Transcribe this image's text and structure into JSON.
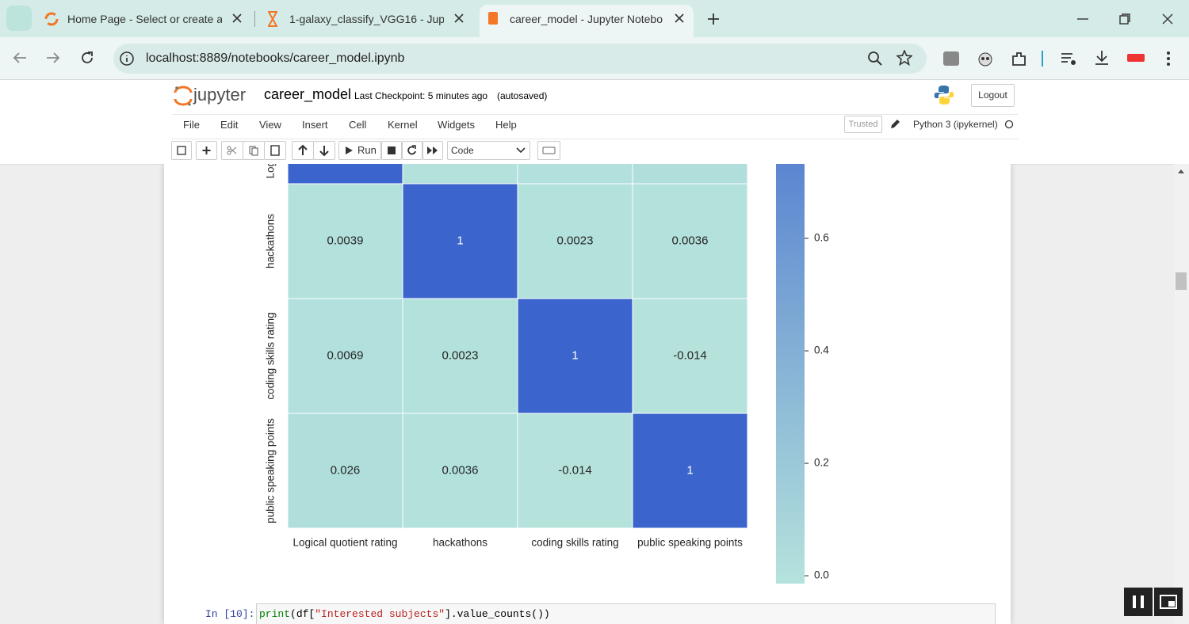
{
  "browser": {
    "tabs": [
      "Home Page - Select or create a",
      "1-galaxy_classify_VGG16 - Jupyt",
      "career_model - Jupyter Notebo"
    ],
    "url": "localhost:8889/notebooks/career_model.ipynb"
  },
  "jupyter": {
    "logo_text": "jupyter",
    "notebook_name": "career_model",
    "checkpoint": "Last Checkpoint: 5 minutes ago",
    "autosave": "(autosaved)",
    "logout": "Logout",
    "menu": [
      "File",
      "Edit",
      "View",
      "Insert",
      "Cell",
      "Kernel",
      "Widgets",
      "Help"
    ],
    "trusted": "Trusted",
    "kernel": "Python 3 (ipykernel)",
    "run": "Run",
    "cell_type": "Code"
  },
  "chart_data": {
    "type": "heatmap",
    "categories": [
      "Logical quotient rating",
      "hackathons",
      "coding skills rating",
      "public speaking points"
    ],
    "values": [
      [
        1,
        0.0039,
        0.0069,
        0.026
      ],
      [
        0.0039,
        1,
        0.0023,
        0.0036
      ],
      [
        0.0069,
        0.0023,
        1,
        -0.014
      ],
      [
        0.026,
        0.0036,
        -0.014,
        1
      ]
    ],
    "cmap": [
      "#b5e3dc",
      "#3b64cc"
    ],
    "zlim": [
      -0.014,
      1
    ],
    "zticks": [
      {
        "value": 0,
        "label": "0.0"
      },
      0.2,
      0.4,
      0.6
    ]
  },
  "next_cell": {
    "prompt": "In [10]:",
    "code": [
      "print",
      "(df[",
      "\"Interested subjects\"",
      "].value_counts())"
    ]
  }
}
